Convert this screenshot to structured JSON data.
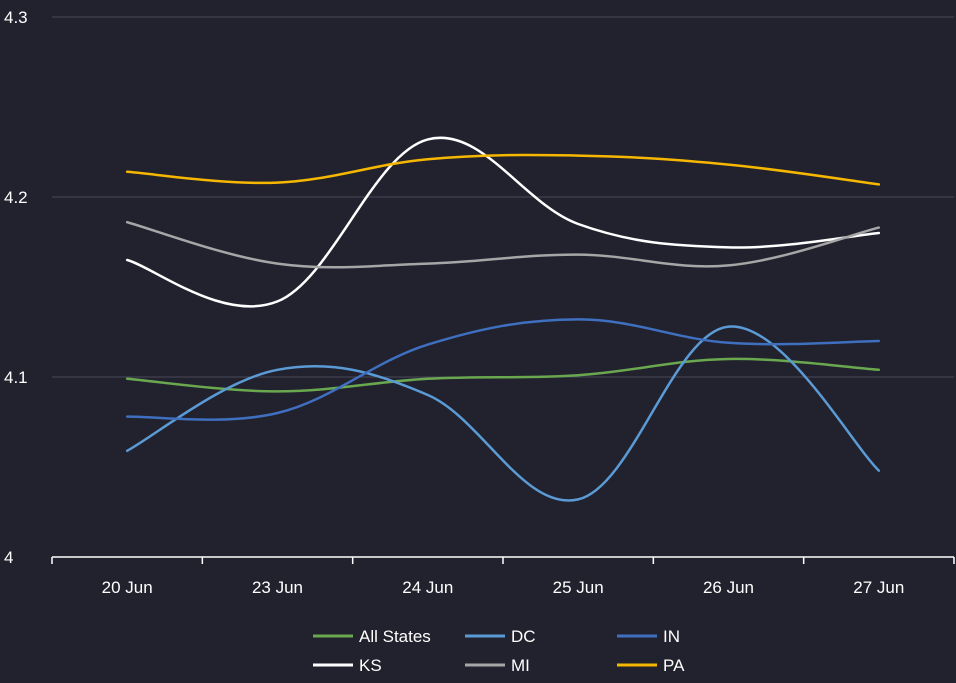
{
  "chart_data": {
    "type": "line",
    "categories": [
      "20 Jun",
      "23 Jun",
      "24 Jun",
      "25 Jun",
      "26 Jun",
      "27 Jun"
    ],
    "ylim": [
      4,
      4.3
    ],
    "yticks": [
      "4",
      "4.1",
      "4.2",
      "4.3"
    ],
    "grid": true,
    "legend_position": "bottom",
    "series": [
      {
        "name": "All States",
        "color": "#6aa84f",
        "values": [
          4.099,
          4.092,
          4.099,
          4.101,
          4.11,
          4.104
        ]
      },
      {
        "name": "DC",
        "color": "#5b9bd5",
        "values": [
          4.059,
          4.104,
          4.09,
          4.032,
          4.128,
          4.048
        ]
      },
      {
        "name": "IN",
        "color": "#3f6fbf",
        "values": [
          4.078,
          4.08,
          4.118,
          4.132,
          4.119,
          4.12
        ]
      },
      {
        "name": "KS",
        "color": "#ffffff",
        "values": [
          4.165,
          4.142,
          4.232,
          4.185,
          4.172,
          4.18
        ]
      },
      {
        "name": "MI",
        "color": "#a6a6a6",
        "values": [
          4.186,
          4.163,
          4.163,
          4.168,
          4.162,
          4.183
        ]
      },
      {
        "name": "PA",
        "color": "#f5b700",
        "values": [
          4.214,
          4.208,
          4.221,
          4.223,
          4.218,
          4.207
        ]
      }
    ]
  }
}
